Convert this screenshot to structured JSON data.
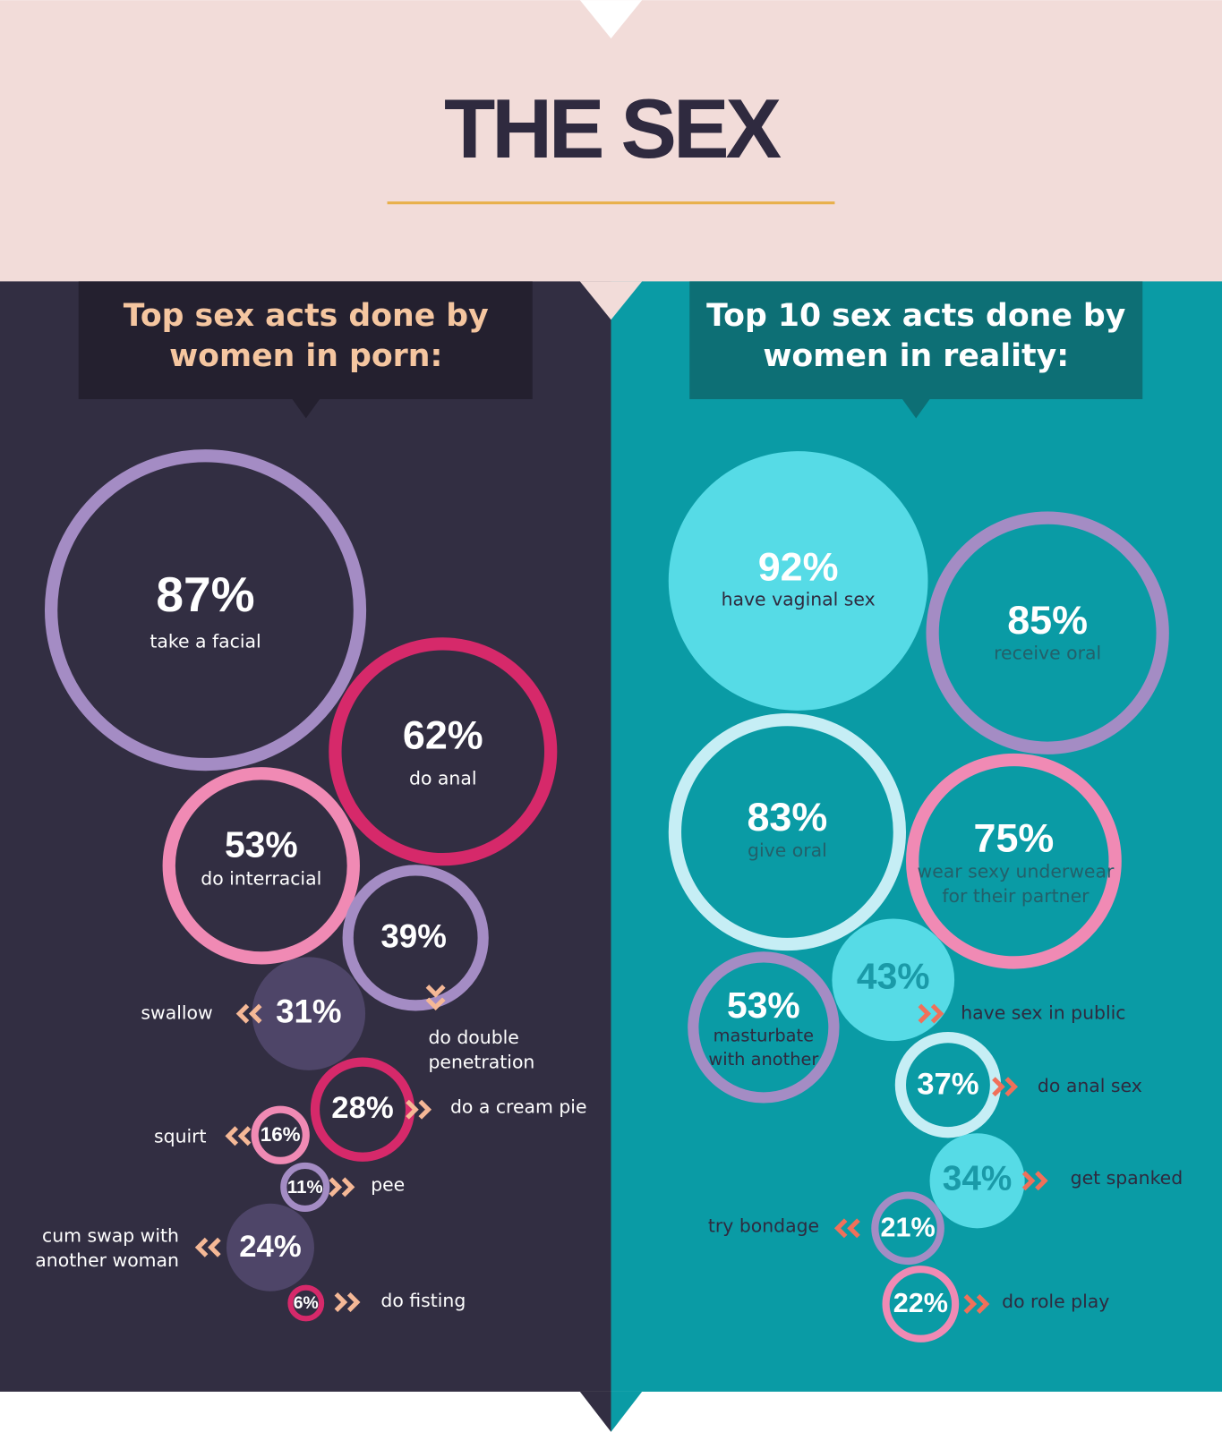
{
  "header": {
    "title": "THE SEX"
  },
  "panels": [
    {
      "heading": [
        "Top sex acts done by",
        "women in porn:"
      ],
      "items": [
        {
          "value": "87%",
          "label": [
            "take a facial"
          ]
        },
        {
          "value": "62%",
          "label": [
            "do anal"
          ]
        },
        {
          "value": "53%",
          "label": [
            "do interracial"
          ]
        },
        {
          "value": "39%",
          "label": [
            "do double",
            "penetration"
          ]
        },
        {
          "value": "31%",
          "label": [
            "swallow"
          ]
        },
        {
          "value": "28%",
          "label": [
            "do a cream pie"
          ]
        },
        {
          "value": "16%",
          "label": [
            "squirt"
          ]
        },
        {
          "value": "11%",
          "label": [
            "pee"
          ]
        },
        {
          "value": "24%",
          "label": [
            "cum swap with",
            "another woman"
          ]
        },
        {
          "value": "6%",
          "label": [
            "do fisting"
          ]
        }
      ]
    },
    {
      "heading": [
        "Top 10 sex acts done by",
        "women in reality:"
      ],
      "items": [
        {
          "value": "92%",
          "label": [
            "have vaginal sex"
          ]
        },
        {
          "value": "85%",
          "label": [
            "receive oral"
          ]
        },
        {
          "value": "83%",
          "label": [
            "give oral"
          ]
        },
        {
          "value": "75%",
          "label": [
            "wear sexy underwear",
            "for their partner"
          ]
        },
        {
          "value": "43%",
          "label": [
            "have sex in public"
          ]
        },
        {
          "value": "53%",
          "label": [
            "masturbate",
            "with another"
          ]
        },
        {
          "value": "37%",
          "label": [
            "do anal sex"
          ]
        },
        {
          "value": "34%",
          "label": [
            "get spanked"
          ]
        },
        {
          "value": "21%",
          "label": [
            "try bondage"
          ]
        },
        {
          "value": "22%",
          "label": [
            "do role play"
          ]
        }
      ]
    }
  ]
}
